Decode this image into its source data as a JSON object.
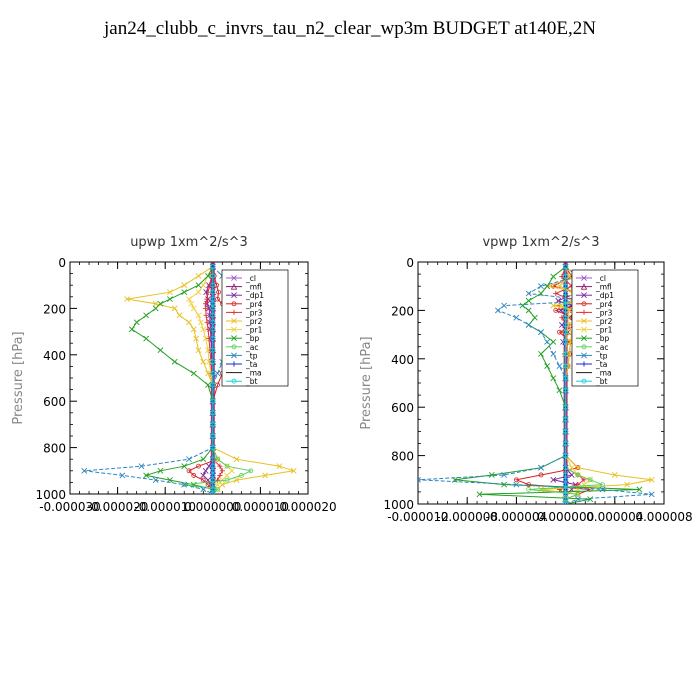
{
  "figure": {
    "title": "jan24_clubb_c_invrs_tau_n2_clear_wp3m  BUDGET at140E,2N"
  },
  "series_colors": {
    "_cl": "#9b59d0",
    "_mfl": "#8b1a6b",
    "_dp1": "#7a2ca0",
    "_pr4": "#d62020",
    "_pr3": "#e03030",
    "_pr2": "#e8c020",
    "_pr1": "#f0d040",
    "_bp": "#22a022",
    "_ac": "#5ad05a",
    "_tp": "#2e86c0",
    "_ta": "#2020d0",
    "_ma": "#1a1a1a",
    "_bt": "#10d0e0"
  },
  "chart_data": [
    {
      "type": "line",
      "title": "upwp   1xm^2/s^3",
      "ylabel": "Pressure [hPa]",
      "xlabel": "",
      "ylim": [
        1000,
        0
      ],
      "y_ticks": [
        0,
        200,
        400,
        600,
        800,
        1000
      ],
      "xlim": [
        -3e-05,
        2e-05
      ],
      "x_tick_labels": [
        "-0.000030",
        "-0.000020",
        "-0.000010",
        "0.000000",
        "0.000010",
        "0.000020"
      ],
      "x_ticks": [
        -3e-05,
        -2e-05,
        -1e-05,
        0,
        1e-05,
        2e-05
      ],
      "legend": [
        "_cl",
        "_mfl",
        "_dp1",
        "_pr4",
        "_pr3",
        "_pr2",
        "_pr1",
        "_bp",
        "_ac",
        "_tp",
        "_ta",
        "_ma",
        "_bt"
      ],
      "legend_position": "top-right",
      "grid": false,
      "y": [
        20,
        60,
        100,
        130,
        160,
        180,
        200,
        230,
        260,
        290,
        330,
        380,
        430,
        480,
        530,
        600,
        650,
        700,
        750,
        800,
        850,
        880,
        900,
        920,
        940,
        960,
        980,
        1000
      ],
      "series": [
        {
          "name": "_cl",
          "values": [
            0,
            0,
            0,
            0,
            0,
            0,
            0,
            0,
            0,
            0,
            0,
            0,
            0,
            0,
            0,
            0,
            0,
            0,
            0,
            0,
            0,
            0,
            0,
            0,
            0,
            0,
            0,
            0
          ]
        },
        {
          "name": "_mfl",
          "values": [
            0,
            0,
            0,
            0,
            0,
            0,
            0,
            0,
            0,
            0,
            0,
            0,
            0,
            0,
            0,
            0,
            0,
            0,
            0,
            0,
            0,
            0,
            0,
            0,
            0,
            0,
            0,
            0
          ]
        },
        {
          "name": "_dp1",
          "values": [
            0,
            0,
            -8e-07,
            -1.4e-06,
            -1e-06,
            -1.2e-06,
            -8e-07,
            -6e-07,
            -6e-07,
            -5e-07,
            -4e-07,
            -3e-07,
            -2e-07,
            0,
            0,
            0,
            0,
            0,
            0,
            0,
            0,
            -8e-07,
            -1.5e-06,
            -2e-06,
            -1e-06,
            -5e-07,
            0,
            0
          ]
        },
        {
          "name": "_pr4",
          "values": [
            0,
            3e-07,
            8e-07,
            1.2e-06,
            1e-06,
            2e-06,
            3e-06,
            4e-06,
            4.5e-06,
            4e-06,
            3.5e-06,
            3e-06,
            2.5e-06,
            2e-06,
            1e-06,
            0,
            0,
            0,
            0,
            0,
            1e-06,
            -3e-06,
            -5e-06,
            -4e-06,
            -2e-06,
            -1e-06,
            0,
            0
          ]
        },
        {
          "name": "_pr3",
          "values": [
            0,
            -3e-07,
            -6e-07,
            -1e-06,
            -1.2e-06,
            -1.5e-06,
            -1.5e-06,
            -1.4e-06,
            -1.2e-06,
            -1e-06,
            -8e-07,
            -6e-07,
            -4e-07,
            -2e-07,
            0,
            0,
            0,
            0,
            0,
            0,
            0,
            1.5e-06,
            2e-06,
            1.5e-06,
            1e-06,
            0,
            0,
            0
          ]
        },
        {
          "name": "_pr2",
          "values": [
            0,
            -3e-06,
            -6e-06,
            -9e-06,
            -1.8e-05,
            -1.2e-05,
            -8e-06,
            -7e-06,
            -5e-06,
            -4e-06,
            -3.5e-06,
            -3e-06,
            -2e-06,
            -1e-06,
            0,
            0,
            0,
            0,
            0,
            0,
            5e-06,
            1.4e-05,
            1.7e-05,
            1.1e-05,
            5e-06,
            2e-06,
            1e-06,
            0
          ]
        },
        {
          "name": "_pr1",
          "values": [
            0,
            -1e-06,
            -2e-06,
            -3e-06,
            -5e-06,
            -4.5e-06,
            -4e-06,
            -3e-06,
            -2.5e-06,
            -2e-06,
            -1.5e-06,
            -1e-06,
            -8e-07,
            -4e-07,
            0,
            0,
            0,
            0,
            0,
            0,
            1e-06,
            3e-06,
            4e-06,
            3e-06,
            2e-06,
            1e-06,
            0,
            0
          ]
        },
        {
          "name": "_bp",
          "values": [
            0,
            -1e-06,
            -3e-06,
            -6e-06,
            -9e-06,
            -1.1e-05,
            -1.2e-05,
            -1.4e-05,
            -1.6e-05,
            -1.7e-05,
            -1.4e-05,
            -1.1e-05,
            -8e-06,
            -4e-06,
            -1e-06,
            0,
            0,
            0,
            0,
            0,
            -2e-06,
            -6e-06,
            -1.1e-05,
            -1.4e-05,
            -9e-06,
            -4e-06,
            0,
            0
          ]
        },
        {
          "name": "_ac",
          "values": [
            0,
            0,
            0,
            0,
            0,
            0,
            0,
            0,
            0,
            0,
            0,
            0,
            0,
            0,
            0,
            0,
            0,
            0,
            0,
            0,
            1e-06,
            3e-06,
            8e-06,
            6e-06,
            3e-06,
            -6e-06,
            1e-06,
            0
          ]
        },
        {
          "name": "_tp",
          "values": [
            0,
            2e-06,
            6e-06,
            1.2e-05,
            1.4e-05,
            1.2e-05,
            9e-06,
            7e-06,
            6e-06,
            5e-06,
            4e-06,
            3e-06,
            2e-06,
            1e-06,
            0,
            0,
            0,
            0,
            0,
            0,
            -5e-06,
            -1.5e-05,
            -2.7e-05,
            -1.9e-05,
            -1.2e-05,
            -6e-06,
            -2e-06,
            0
          ]
        },
        {
          "name": "_ta",
          "values": [
            0,
            0,
            0,
            0,
            0,
            0,
            0,
            0,
            0,
            0,
            0,
            0,
            0,
            0,
            0,
            0,
            0,
            0,
            0,
            0,
            0,
            0,
            0,
            0,
            0,
            0,
            0,
            0
          ]
        },
        {
          "name": "_ma",
          "values": [
            0,
            0,
            0,
            0,
            0,
            0,
            0,
            0,
            0,
            0,
            0,
            0,
            0,
            0,
            0,
            0,
            0,
            0,
            0,
            0,
            0,
            0,
            0,
            0,
            0,
            0,
            0,
            0
          ]
        },
        {
          "name": "_bt",
          "values": [
            0,
            0,
            0,
            0,
            0,
            0,
            0,
            0,
            0,
            0,
            0,
            0,
            0,
            0,
            0,
            0,
            0,
            0,
            0,
            0,
            0,
            0,
            0,
            0,
            0,
            0,
            0,
            0
          ]
        }
      ]
    },
    {
      "type": "line",
      "title": "vpwp   1xm^2/s^3",
      "ylabel": "Pressure [hPa]",
      "xlabel": "",
      "ylim": [
        1000,
        0
      ],
      "y_ticks": [
        0,
        200,
        400,
        600,
        800,
        1000
      ],
      "xlim": [
        -1.2e-05,
        8e-06
      ],
      "x_tick_labels": [
        "-0.000012",
        "-0.000008",
        "-0.000004",
        "0.000000",
        "0.000004",
        "0.000008"
      ],
      "x_ticks": [
        -1.2e-05,
        -8e-06,
        -4e-06,
        0,
        4e-06,
        8e-06
      ],
      "legend": [
        "_cl",
        "_mfl",
        "_dp1",
        "_pr4",
        "_pr3",
        "_pr2",
        "_pr1",
        "_bp",
        "_ac",
        "_tp",
        "_ta",
        "_ma",
        "_bt"
      ],
      "legend_position": "top-right",
      "grid": false,
      "y": [
        20,
        60,
        100,
        130,
        160,
        180,
        200,
        230,
        260,
        290,
        330,
        380,
        430,
        480,
        530,
        600,
        650,
        700,
        750,
        800,
        850,
        880,
        900,
        920,
        940,
        960,
        980,
        1000
      ],
      "series": [
        {
          "name": "_cl",
          "values": [
            0,
            0,
            0,
            0,
            0,
            0,
            0,
            0,
            0,
            0,
            0,
            0,
            0,
            0,
            0,
            0,
            0,
            0,
            0,
            0,
            0,
            0,
            0,
            0,
            0,
            0,
            0,
            0
          ]
        },
        {
          "name": "_mfl",
          "values": [
            0,
            0,
            0,
            0,
            0,
            0,
            0,
            0,
            0,
            0,
            0,
            0,
            0,
            0,
            0,
            0,
            0,
            0,
            0,
            0,
            0,
            0,
            0,
            0,
            0,
            0,
            0,
            0
          ]
        },
        {
          "name": "_dp1",
          "values": [
            0,
            3e-07,
            -5e-07,
            8e-07,
            -6e-07,
            5e-07,
            -4e-07,
            3e-07,
            -3e-07,
            2e-07,
            -2e-07,
            2e-07,
            0,
            0,
            0,
            0,
            0,
            0,
            0,
            0,
            0,
            5e-07,
            -1e-06,
            8e-07,
            5e-07,
            0,
            0,
            0
          ]
        },
        {
          "name": "_pr4",
          "values": [
            0,
            5e-07,
            -1e-06,
            1.5e-06,
            1e-06,
            8e-07,
            -8e-07,
            6e-07,
            1e-06,
            -5e-07,
            4e-07,
            3e-07,
            2e-07,
            0,
            0,
            0,
            0,
            0,
            0,
            0,
            1e-06,
            -2e-06,
            -4e-06,
            -3e-06,
            2e-06,
            1e-06,
            0,
            0
          ]
        },
        {
          "name": "_pr3",
          "values": [
            0,
            -3e-07,
            5e-07,
            -8e-07,
            6e-07,
            -5e-07,
            4e-07,
            -3e-07,
            3e-07,
            -2e-07,
            2e-07,
            -1e-07,
            0,
            0,
            0,
            0,
            0,
            0,
            0,
            0,
            0,
            1e-06,
            1.5e-06,
            1e-06,
            -5e-07,
            0,
            0,
            0
          ]
        },
        {
          "name": "_pr2",
          "values": [
            0,
            1e-06,
            -1.5e-06,
            2e-06,
            1.5e-06,
            -1e-06,
            1e-06,
            8e-07,
            6e-07,
            5e-07,
            4e-07,
            3e-07,
            2e-07,
            0,
            0,
            0,
            0,
            0,
            0,
            0,
            1e-06,
            4e-06,
            7e-06,
            5e-06,
            -2e-06,
            1e-06,
            0,
            0
          ]
        },
        {
          "name": "_pr1",
          "values": [
            0,
            3e-07,
            -5e-07,
            6e-07,
            5e-07,
            -4e-07,
            3e-07,
            2e-07,
            2e-07,
            1e-07,
            1e-07,
            0,
            0,
            0,
            0,
            0,
            0,
            0,
            0,
            0,
            5e-07,
            1e-06,
            2e-06,
            1.5e-06,
            1e-06,
            0,
            0,
            0
          ]
        },
        {
          "name": "_bp",
          "values": [
            0,
            -1e-06,
            -1.5e-06,
            -2e-06,
            -3e-06,
            -3.5e-06,
            -3e-06,
            -2.5e-06,
            -3e-06,
            -2e-06,
            -1e-06,
            -2e-06,
            -1.5e-06,
            -1e-06,
            -5e-07,
            0,
            0,
            0,
            0,
            0,
            -2e-06,
            -6e-06,
            -9e-06,
            -5e-06,
            6e-06,
            -7e-06,
            2e-06,
            0
          ]
        },
        {
          "name": "_ac",
          "values": [
            0,
            0,
            0,
            0,
            0,
            0,
            0,
            0,
            0,
            0,
            0,
            0,
            0,
            0,
            0,
            0,
            0,
            0,
            0,
            0,
            0,
            1e-06,
            2e-06,
            3e-06,
            -3e-06,
            1e-06,
            0,
            0
          ]
        },
        {
          "name": "_tp",
          "values": [
            0,
            1e-06,
            -2e-06,
            -3e-06,
            2e-06,
            -5e-06,
            -5.5e-06,
            -4e-06,
            -3e-06,
            -2e-06,
            -1.5e-06,
            -1e-06,
            -5e-07,
            0,
            0,
            0,
            0,
            0,
            0,
            0,
            -2e-06,
            -5e-06,
            -1.2e-05,
            -4e-06,
            3e-06,
            7e-06,
            1e-06,
            0
          ]
        },
        {
          "name": "_ta",
          "values": [
            0,
            0,
            0,
            0,
            0,
            0,
            0,
            0,
            0,
            0,
            0,
            0,
            0,
            0,
            0,
            0,
            0,
            0,
            0,
            0,
            0,
            0,
            0,
            0,
            0,
            0,
            0,
            0
          ]
        },
        {
          "name": "_ma",
          "values": [
            0,
            0,
            0,
            0,
            0,
            0,
            0,
            0,
            0,
            0,
            0,
            0,
            0,
            0,
            0,
            0,
            0,
            0,
            0,
            0,
            0,
            0,
            0,
            0,
            0,
            0,
            0,
            0
          ]
        },
        {
          "name": "_bt",
          "values": [
            0,
            0,
            0,
            0,
            0,
            0,
            0,
            0,
            0,
            0,
            0,
            0,
            0,
            0,
            0,
            0,
            0,
            0,
            0,
            0,
            0,
            0,
            0,
            0,
            0,
            0,
            0,
            0
          ]
        }
      ]
    }
  ]
}
